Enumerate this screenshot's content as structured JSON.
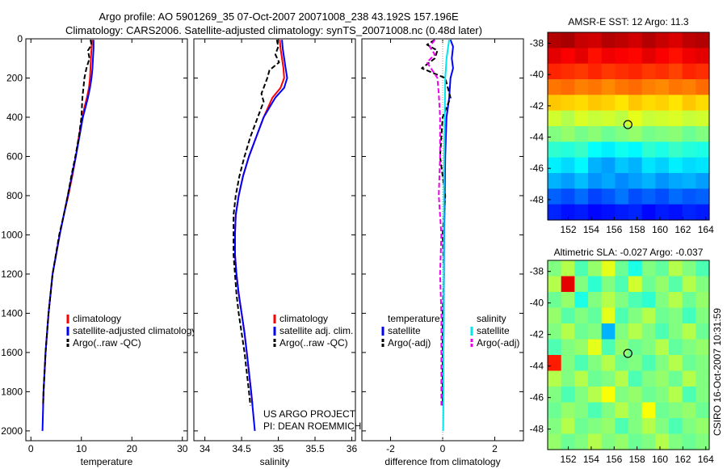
{
  "header": {
    "line1": "Argo profile: AO 5901269_35 07-Oct-2007 20071008_238 43.192S 157.196E",
    "line2": "Climatology: CARS2006. Satellite-adjusted climatology: synTS_20071008.nc (0.48d later)"
  },
  "credits": {
    "project": "US ARGO PROJECT",
    "pi": "PI: DEAN ROEMMICH",
    "side_stamp": "CSIRO 16-Oct-2007 10:31:59"
  },
  "colors": {
    "climatology": "#ff0000",
    "satellite": "#0000ff",
    "argo": "#000000",
    "sal_satellite": "#00e5ee",
    "sal_argo": "#ee00ee",
    "marker": "#000000"
  },
  "chart_data": [
    {
      "id": "temperature",
      "type": "line",
      "xlabel": "temperature",
      "xlim": [
        -1,
        31
      ],
      "ylim": [
        2050,
        0
      ],
      "xticks": [
        0,
        10,
        20,
        30
      ],
      "yticks": [
        0,
        200,
        400,
        600,
        800,
        1000,
        1200,
        1400,
        1600,
        1800,
        2000
      ],
      "legend": {
        "position": "lower-right",
        "entries": [
          "climatology",
          "satellite-adjusted climatology",
          "Argo(..raw -QC)"
        ]
      },
      "series": [
        {
          "name": "climatology",
          "color": "#ff0000",
          "style": "solid",
          "depth": [
            5,
            50,
            100,
            150,
            200,
            250,
            300,
            350,
            400,
            500,
            600,
            700,
            800,
            900,
            1000,
            1200,
            1400,
            1600,
            1800,
            1870
          ],
          "values": [
            12.1,
            12.0,
            11.9,
            11.8,
            11.7,
            11.5,
            11.1,
            10.6,
            10.2,
            9.5,
            8.9,
            8.2,
            7.4,
            6.5,
            5.7,
            4.3,
            3.5,
            2.9,
            2.5,
            2.4
          ]
        },
        {
          "name": "satellite-adjusted climatology",
          "color": "#0000ff",
          "style": "solid",
          "depth": [
            5,
            50,
            100,
            150,
            200,
            250,
            300,
            350,
            400,
            500,
            600,
            700,
            800,
            900,
            1000,
            1200,
            1400,
            1600,
            1800,
            2000
          ],
          "values": [
            12.4,
            12.4,
            12.3,
            12.2,
            12.0,
            11.7,
            11.3,
            10.8,
            10.3,
            9.6,
            8.9,
            8.1,
            7.3,
            6.5,
            5.7,
            4.3,
            3.5,
            2.9,
            2.5,
            2.3
          ]
        },
        {
          "name": "Argo(..raw -QC)",
          "color": "#000000",
          "style": "dashed",
          "depth": [
            5,
            30,
            60,
            100,
            150,
            200,
            250,
            300,
            400,
            500,
            600,
            700,
            800,
            900,
            1000,
            1200,
            1400,
            1600,
            1800,
            1870
          ],
          "values": [
            11.8,
            12.0,
            11.3,
            11.6,
            11.0,
            10.6,
            10.4,
            10.2,
            10.0,
            9.5,
            8.8,
            8.0,
            7.3,
            6.5,
            5.6,
            4.3,
            3.5,
            2.9,
            2.5,
            2.4
          ]
        }
      ]
    },
    {
      "id": "salinity",
      "type": "line",
      "xlabel": "salinity",
      "xlim": [
        33.85,
        36.05
      ],
      "ylim": [
        2050,
        0
      ],
      "xticks": [
        34,
        34.5,
        35,
        35.5,
        36
      ],
      "xticklabels": [
        "34",
        "34.5",
        "35",
        "35.5",
        "36"
      ],
      "legend": {
        "position": "lower-right",
        "entries": [
          "climatology",
          "satellite adj. clim.",
          "Argo(..raw -QC)"
        ]
      },
      "series": [
        {
          "name": "climatology",
          "color": "#ff0000",
          "style": "solid",
          "depth": [
            5,
            50,
            100,
            150,
            200,
            250,
            300,
            400,
            500,
            600,
            700,
            800,
            900,
            1000,
            1100,
            1200,
            1300,
            1400,
            1500,
            1600,
            1800,
            1870
          ],
          "values": [
            35.02,
            35.03,
            35.05,
            35.07,
            35.08,
            35.03,
            34.92,
            34.8,
            34.7,
            34.6,
            34.52,
            34.46,
            34.42,
            34.41,
            34.41,
            34.43,
            34.46,
            34.5,
            34.54,
            34.57,
            34.63,
            34.65
          ]
        },
        {
          "name": "satellite adj. clim.",
          "color": "#0000ff",
          "style": "solid",
          "depth": [
            5,
            50,
            100,
            150,
            200,
            250,
            300,
            400,
            500,
            600,
            700,
            800,
            900,
            1000,
            1100,
            1200,
            1300,
            1400,
            1500,
            1600,
            1800,
            2000
          ],
          "values": [
            35.05,
            35.06,
            35.08,
            35.1,
            35.12,
            35.08,
            34.96,
            34.8,
            34.7,
            34.6,
            34.52,
            34.46,
            34.42,
            34.41,
            34.41,
            34.43,
            34.46,
            34.5,
            34.54,
            34.57,
            34.63,
            34.68
          ]
        },
        {
          "name": "Argo(..raw -QC)",
          "color": "#000000",
          "style": "dashed",
          "depth": [
            5,
            40,
            80,
            120,
            160,
            200,
            250,
            280,
            320,
            400,
            500,
            600,
            700,
            800,
            900,
            1000,
            1100,
            1200,
            1300,
            1400,
            1600,
            1800,
            1870
          ],
          "values": [
            34.98,
            35.0,
            34.96,
            35.01,
            34.88,
            34.85,
            34.8,
            34.77,
            34.8,
            34.72,
            34.62,
            34.54,
            34.47,
            34.42,
            34.39,
            34.39,
            34.39,
            34.41,
            34.43,
            34.46,
            34.54,
            34.6,
            34.62
          ]
        }
      ]
    },
    {
      "id": "difference",
      "type": "line",
      "xlabel": "difference from climatology",
      "xlim": [
        -3.1,
        3.1
      ],
      "ylim": [
        2050,
        0
      ],
      "xticks": [
        -2,
        0,
        2
      ],
      "legend": {
        "position": "lower-right",
        "groups": [
          {
            "title": "temperature",
            "entries": [
              "satellite",
              "Argo(-adj)"
            ]
          },
          {
            "title": "salinity",
            "entries": [
              "satellite",
              "Argo(-adj)"
            ]
          }
        ]
      },
      "series": [
        {
          "name": "temperature satellite",
          "color": "#0000ff",
          "style": "solid",
          "depth": [
            5,
            40,
            100,
            150,
            200,
            300,
            400,
            600,
            800,
            1000,
            1200,
            1400,
            1600,
            1800,
            1870
          ],
          "values": [
            0.3,
            0.4,
            0.35,
            0.4,
            0.3,
            0.25,
            0.15,
            0.1,
            0.08,
            0.06,
            0.05,
            0.04,
            0.03,
            0.02,
            0.0
          ]
        },
        {
          "name": "temperature Argo(-adj)",
          "color": "#000000",
          "style": "dashed",
          "depth": [
            5,
            30,
            60,
            100,
            150,
            200,
            300,
            400,
            600,
            800,
            1000,
            1200,
            1400,
            1600,
            1800,
            1870
          ],
          "values": [
            -0.3,
            -0.6,
            -0.2,
            -0.3,
            -0.8,
            0.1,
            0.3,
            0.0,
            -0.1,
            0.1,
            0.0,
            0.05,
            0.0,
            0.0,
            0.0,
            0.0
          ]
        },
        {
          "name": "salinity satellite",
          "color": "#00e5ee",
          "style": "solid",
          "depth": [
            5,
            50,
            100,
            200,
            400,
            600,
            800,
            1000,
            1200,
            1400,
            1600,
            1800,
            2000
          ],
          "values": [
            0.25,
            0.2,
            0.15,
            0.1,
            0.08,
            0.06,
            0.05,
            0.05,
            0.04,
            0.04,
            0.03,
            0.03,
            0.02
          ]
        },
        {
          "name": "salinity Argo(-adj)",
          "color": "#ee00ee",
          "style": "dashed",
          "depth": [
            5,
            40,
            80,
            120,
            160,
            200,
            280,
            400,
            600,
            800,
            1000,
            1200,
            1400,
            1600,
            1800,
            1870
          ],
          "values": [
            -0.3,
            -0.5,
            -0.3,
            -0.6,
            -0.4,
            -0.2,
            -0.15,
            -0.1,
            -0.1,
            -0.15,
            -0.05,
            -0.1,
            -0.05,
            -0.05,
            -0.05,
            -0.05
          ]
        }
      ]
    },
    {
      "id": "sst-map",
      "type": "heatmap",
      "title": "AMSR-E SST: 12  Argo: 11.3",
      "xlim": [
        150.2,
        164.3
      ],
      "ylim": [
        -49.3,
        -37.3
      ],
      "xticks": [
        152,
        154,
        156,
        158,
        160,
        162,
        164
      ],
      "yticks": [
        -38,
        -40,
        -42,
        -44,
        -46,
        -48
      ],
      "field_rows": [
        [
          0.95,
          0.96,
          0.93,
          0.92,
          0.95,
          0.94,
          0.92,
          0.95,
          0.93,
          0.91,
          0.94,
          0.95
        ],
        [
          0.9,
          0.88,
          0.9,
          0.86,
          0.89,
          0.88,
          0.87,
          0.9,
          0.88,
          0.86,
          0.89,
          0.9
        ],
        [
          0.84,
          0.83,
          0.82,
          0.84,
          0.82,
          0.83,
          0.84,
          0.82,
          0.83,
          0.81,
          0.84,
          0.83
        ],
        [
          0.76,
          0.77,
          0.75,
          0.76,
          0.74,
          0.76,
          0.77,
          0.75,
          0.74,
          0.76,
          0.75,
          0.77
        ],
        [
          0.68,
          0.67,
          0.66,
          0.68,
          0.67,
          0.65,
          0.68,
          0.66,
          0.67,
          0.65,
          0.68,
          0.66
        ],
        [
          0.58,
          0.55,
          0.59,
          0.57,
          0.58,
          0.56,
          0.6,
          0.57,
          0.58,
          0.59,
          0.57,
          0.58
        ],
        [
          0.5,
          0.52,
          0.49,
          0.51,
          0.48,
          0.5,
          0.52,
          0.49,
          0.5,
          0.51,
          0.48,
          0.5
        ],
        [
          0.42,
          0.41,
          0.43,
          0.38,
          0.36,
          0.39,
          0.37,
          0.42,
          0.4,
          0.43,
          0.41,
          0.4
        ],
        [
          0.36,
          0.34,
          0.37,
          0.3,
          0.28,
          0.32,
          0.3,
          0.35,
          0.33,
          0.36,
          0.34,
          0.35
        ],
        [
          0.3,
          0.28,
          0.31,
          0.27,
          0.29,
          0.26,
          0.28,
          0.3,
          0.27,
          0.29,
          0.3,
          0.28
        ],
        [
          0.22,
          0.2,
          0.23,
          0.19,
          0.21,
          0.24,
          0.2,
          0.22,
          0.2,
          0.23,
          0.21,
          0.22
        ],
        [
          0.16,
          0.14,
          0.15,
          0.13,
          0.14,
          0.15,
          0.16,
          0.13,
          0.15,
          0.14,
          0.16,
          0.15
        ]
      ],
      "marker": {
        "lon": 157.2,
        "lat": -43.2
      }
    },
    {
      "id": "sla-map",
      "type": "heatmap",
      "title": "Altimetric SLA: -0.027  Argo: -0.037",
      "xlim": [
        150.2,
        164.3
      ],
      "ylim": [
        -49.3,
        -37.3
      ],
      "xticks": [
        152,
        154,
        156,
        158,
        160,
        162,
        164
      ],
      "yticks": [
        -38,
        -40,
        -42,
        -44,
        -46,
        -48
      ],
      "field_rows": [
        [
          0.5,
          0.55,
          0.45,
          0.52,
          0.6,
          0.48,
          0.4,
          0.5,
          0.47,
          0.55,
          0.5,
          0.45
        ],
        [
          0.55,
          0.9,
          0.5,
          0.42,
          0.5,
          0.45,
          0.58,
          0.48,
          0.52,
          0.46,
          0.55,
          0.5
        ],
        [
          0.48,
          0.52,
          0.4,
          0.5,
          0.55,
          0.5,
          0.45,
          0.42,
          0.5,
          0.55,
          0.48,
          0.52
        ],
        [
          0.52,
          0.46,
          0.5,
          0.47,
          0.6,
          0.45,
          0.5,
          0.55,
          0.48,
          0.5,
          0.44,
          0.5
        ],
        [
          0.5,
          0.55,
          0.48,
          0.5,
          0.3,
          0.5,
          0.55,
          0.5,
          0.45,
          0.5,
          0.55,
          0.48
        ],
        [
          0.45,
          0.5,
          0.52,
          0.6,
          0.45,
          0.52,
          0.48,
          0.5,
          0.55,
          0.47,
          0.5,
          0.52
        ],
        [
          0.85,
          0.5,
          0.45,
          0.5,
          0.55,
          0.48,
          0.5,
          0.45,
          0.5,
          0.55,
          0.48,
          0.5
        ],
        [
          0.55,
          0.5,
          0.55,
          0.48,
          0.5,
          0.55,
          0.45,
          0.5,
          0.52,
          0.48,
          0.55,
          0.5
        ],
        [
          0.5,
          0.45,
          0.5,
          0.55,
          0.62,
          0.5,
          0.52,
          0.48,
          0.5,
          0.55,
          0.45,
          0.5
        ],
        [
          0.48,
          0.52,
          0.5,
          0.45,
          0.5,
          0.55,
          0.5,
          0.62,
          0.48,
          0.5,
          0.52,
          0.48
        ],
        [
          0.5,
          0.55,
          0.48,
          0.5,
          0.52,
          0.45,
          0.5,
          0.55,
          0.5,
          0.45,
          0.5,
          0.52
        ],
        [
          0.52,
          0.48,
          0.5,
          0.55,
          0.5,
          0.52,
          0.48,
          0.5,
          0.55,
          0.5,
          0.48,
          0.5
        ]
      ],
      "marker": {
        "lon": 157.2,
        "lat": -43.2
      }
    }
  ]
}
